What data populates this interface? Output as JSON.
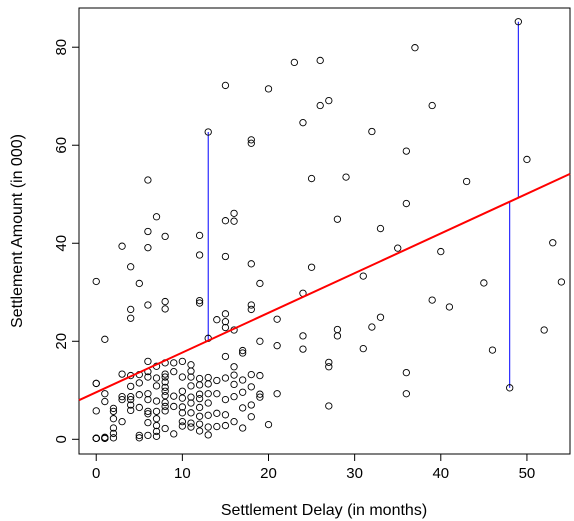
{
  "chart_data": {
    "type": "scatter",
    "xlabel": "Settlement Delay (in months)",
    "ylabel": "Settlement Amount (in 000)",
    "xlim": [
      -2,
      55
    ],
    "ylim": [
      -3,
      88
    ],
    "xticks": [
      0,
      10,
      20,
      30,
      40,
      50
    ],
    "yticks": [
      0,
      20,
      40,
      60,
      80
    ],
    "grid": false,
    "point_color": "#000000",
    "fit_color": "#ff0000",
    "residual_color": "#0000ff",
    "fit_line": {
      "intercept": 9.6,
      "slope": 0.81
    },
    "highlighted_residuals": [
      {
        "x": 13,
        "y": 62.7
      },
      {
        "x": 48,
        "y": 10.5
      },
      {
        "x": 49,
        "y": 85.2
      }
    ],
    "points": [
      [
        0,
        0.2
      ],
      [
        0,
        0.2
      ],
      [
        0,
        0.2
      ],
      [
        0,
        0.2
      ],
      [
        0,
        5.8
      ],
      [
        0,
        11.4
      ],
      [
        0,
        11.4
      ],
      [
        0,
        32.2
      ],
      [
        1,
        0.2
      ],
      [
        1,
        0.2
      ],
      [
        1,
        0.4
      ],
      [
        1,
        7.7
      ],
      [
        1,
        9.3
      ],
      [
        1,
        20.4
      ],
      [
        2,
        0.3
      ],
      [
        2,
        1.2
      ],
      [
        2,
        2.3
      ],
      [
        2,
        4.2
      ],
      [
        2,
        5.7
      ],
      [
        2,
        6.3
      ],
      [
        3,
        3.6
      ],
      [
        3,
        8.1
      ],
      [
        3,
        8.7
      ],
      [
        3,
        13.3
      ],
      [
        3,
        39.4
      ],
      [
        4,
        5.9
      ],
      [
        4,
        7.0
      ],
      [
        4,
        8.1
      ],
      [
        4,
        8.7
      ],
      [
        4,
        10.8
      ],
      [
        4,
        13.0
      ],
      [
        4,
        24.7
      ],
      [
        4,
        26.5
      ],
      [
        4,
        35.2
      ],
      [
        5,
        0.3
      ],
      [
        5,
        0.8
      ],
      [
        5,
        6.5
      ],
      [
        5,
        9.1
      ],
      [
        5,
        11.5
      ],
      [
        5,
        13.2
      ],
      [
        5,
        31.8
      ],
      [
        6,
        0.8
      ],
      [
        6,
        3.4
      ],
      [
        6,
        5.2
      ],
      [
        6,
        5.7
      ],
      [
        6,
        8.1
      ],
      [
        6,
        9.3
      ],
      [
        6,
        12.7
      ],
      [
        6,
        13.8
      ],
      [
        6,
        15.9
      ],
      [
        6,
        27.4
      ],
      [
        6,
        39.1
      ],
      [
        6,
        42.4
      ],
      [
        6,
        52.9
      ],
      [
        7,
        0.6
      ],
      [
        7,
        1.6
      ],
      [
        7,
        2.8
      ],
      [
        7,
        4.2
      ],
      [
        7,
        5.7
      ],
      [
        7,
        7.8
      ],
      [
        7,
        10.9
      ],
      [
        7,
        12.5
      ],
      [
        7,
        14.9
      ],
      [
        7,
        45.4
      ],
      [
        8,
        2.2
      ],
      [
        8,
        5.8
      ],
      [
        8,
        6.7
      ],
      [
        8,
        7.5
      ],
      [
        8,
        8.9
      ],
      [
        8,
        9.8
      ],
      [
        8,
        10.6
      ],
      [
        8,
        11.7
      ],
      [
        8,
        12.7
      ],
      [
        8,
        13.3
      ],
      [
        8,
        15.6
      ],
      [
        8,
        26.6
      ],
      [
        8,
        28.1
      ],
      [
        8,
        41.4
      ],
      [
        9,
        1.1
      ],
      [
        9,
        6.7
      ],
      [
        9,
        8.8
      ],
      [
        9,
        13.8
      ],
      [
        9,
        15.6
      ],
      [
        10,
        2.7
      ],
      [
        10,
        3.6
      ],
      [
        10,
        5.4
      ],
      [
        10,
        6.6
      ],
      [
        10,
        8.4
      ],
      [
        10,
        9.8
      ],
      [
        10,
        12.7
      ],
      [
        10,
        15.9
      ],
      [
        11,
        2.5
      ],
      [
        11,
        3.3
      ],
      [
        11,
        5.4
      ],
      [
        11,
        7.4
      ],
      [
        11,
        8.6
      ],
      [
        11,
        10.9
      ],
      [
        11,
        12.7
      ],
      [
        11,
        13.9
      ],
      [
        11,
        15.2
      ],
      [
        12,
        1.7
      ],
      [
        12,
        3.1
      ],
      [
        12,
        4.7
      ],
      [
        12,
        6.5
      ],
      [
        12,
        8.3
      ],
      [
        12,
        9.2
      ],
      [
        12,
        11.1
      ],
      [
        12,
        12.4
      ],
      [
        12,
        27.8
      ],
      [
        12,
        28.3
      ],
      [
        12,
        37.6
      ],
      [
        12,
        41.6
      ],
      [
        13,
        0.9
      ],
      [
        13,
        2.5
      ],
      [
        13,
        4.9
      ],
      [
        13,
        7.4
      ],
      [
        13,
        9.3
      ],
      [
        13,
        11.3
      ],
      [
        13,
        12.6
      ],
      [
        13,
        20.6
      ],
      [
        13,
        62.7
      ],
      [
        14,
        2.6
      ],
      [
        14,
        5.3
      ],
      [
        14,
        9.3
      ],
      [
        14,
        12.0
      ],
      [
        14,
        24.4
      ],
      [
        15,
        2.8
      ],
      [
        15,
        5.0
      ],
      [
        15,
        8.1
      ],
      [
        15,
        12.5
      ],
      [
        15,
        16.9
      ],
      [
        15,
        22.8
      ],
      [
        15,
        24.0
      ],
      [
        15,
        25.6
      ],
      [
        15,
        37.3
      ],
      [
        15,
        44.6
      ],
      [
        15,
        72.2
      ],
      [
        16,
        3.6
      ],
      [
        16,
        8.7
      ],
      [
        16,
        11.2
      ],
      [
        16,
        13.1
      ],
      [
        16,
        14.8
      ],
      [
        16,
        22.3
      ],
      [
        16,
        44.5
      ],
      [
        16,
        46.1
      ],
      [
        17,
        2.3
      ],
      [
        17,
        6.4
      ],
      [
        17,
        9.6
      ],
      [
        17,
        12.1
      ],
      [
        17,
        17.6
      ],
      [
        17,
        18.1
      ],
      [
        18,
        4.6
      ],
      [
        18,
        7.0
      ],
      [
        18,
        10.7
      ],
      [
        18,
        13.2
      ],
      [
        18,
        26.5
      ],
      [
        18,
        27.4
      ],
      [
        18,
        35.8
      ],
      [
        18,
        60.4
      ],
      [
        18,
        61.1
      ],
      [
        19,
        8.6
      ],
      [
        19,
        9.2
      ],
      [
        19,
        13.0
      ],
      [
        19,
        20.0
      ],
      [
        19,
        31.8
      ],
      [
        20,
        3.0
      ],
      [
        20,
        71.5
      ],
      [
        21,
        9.3
      ],
      [
        21,
        19.1
      ],
      [
        21,
        24.5
      ],
      [
        23,
        76.9
      ],
      [
        24,
        18.4
      ],
      [
        24,
        21.1
      ],
      [
        24,
        29.8
      ],
      [
        24,
        64.6
      ],
      [
        25,
        35.1
      ],
      [
        25,
        53.2
      ],
      [
        26,
        68.1
      ],
      [
        26,
        77.3
      ],
      [
        27,
        6.8
      ],
      [
        27,
        14.8
      ],
      [
        27,
        15.7
      ],
      [
        27,
        69.1
      ],
      [
        28,
        21.1
      ],
      [
        28,
        22.4
      ],
      [
        28,
        44.9
      ],
      [
        29,
        53.5
      ],
      [
        31,
        18.5
      ],
      [
        31,
        33.3
      ],
      [
        32,
        22.9
      ],
      [
        32,
        62.8
      ],
      [
        33,
        24.9
      ],
      [
        33,
        43.0
      ],
      [
        35,
        39.0
      ],
      [
        36,
        9.3
      ],
      [
        36,
        13.6
      ],
      [
        36,
        48.1
      ],
      [
        36,
        58.8
      ],
      [
        37,
        79.9
      ],
      [
        39,
        28.4
      ],
      [
        39,
        68.1
      ],
      [
        40,
        38.3
      ],
      [
        41,
        27.0
      ],
      [
        43,
        52.6
      ],
      [
        45,
        31.9
      ],
      [
        46,
        18.2
      ],
      [
        48,
        10.5
      ],
      [
        49,
        85.2
      ],
      [
        50,
        57.1
      ],
      [
        52,
        22.3
      ],
      [
        53,
        40.1
      ],
      [
        54,
        32.1
      ]
    ]
  }
}
